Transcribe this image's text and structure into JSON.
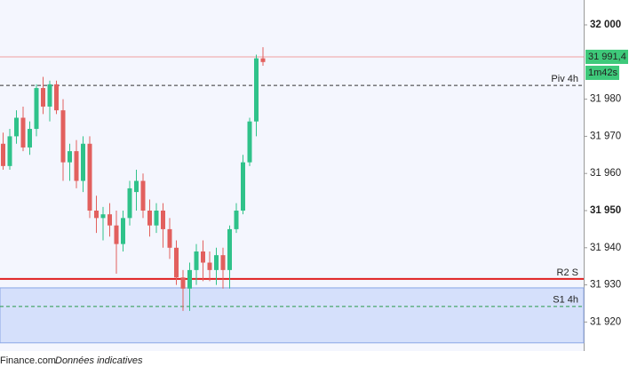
{
  "chart_data": {
    "type": "candlestick",
    "categories": [
      null,
      null,
      null,
      null,
      null,
      null,
      null,
      null,
      null,
      null,
      null,
      null,
      null,
      null,
      null,
      null,
      null,
      null,
      null,
      null,
      null,
      null,
      null,
      null,
      null,
      null,
      null,
      null,
      null,
      null,
      null,
      null,
      null,
      null,
      null,
      null,
      null,
      null,
      null,
      null
    ],
    "open": [
      31968,
      31962,
      31970,
      31975,
      31967,
      31972,
      31983,
      31978,
      31984,
      31977,
      31963,
      31966,
      31958,
      31968,
      31950,
      31948,
      31949,
      31946,
      31941,
      31948,
      31955,
      31958,
      31950,
      31946,
      31950,
      31945,
      31940,
      31932,
      31929,
      31934,
      31939,
      31936,
      31934,
      31938,
      31934,
      31945,
      31950,
      31963,
      31974,
      31991
    ],
    "high": [
      31971,
      31972,
      31977,
      31978,
      31974,
      31984,
      31986,
      31985,
      31985,
      31980,
      31968,
      31969,
      31970,
      31970,
      31954,
      31951,
      31952,
      31950,
      31950,
      31958,
      31961,
      31960,
      31953,
      31952,
      31952,
      31948,
      31942,
      31934,
      31936,
      31941,
      31942,
      31939,
      31940,
      31940,
      31946,
      31952,
      31965,
      31975,
      31992,
      31994
    ],
    "low": [
      31961,
      31961,
      31968,
      31966,
      31965,
      31970,
      31976,
      31974,
      31976,
      31958,
      31958,
      31956,
      31955,
      31948,
      31944,
      31942,
      31943,
      31933,
      31939,
      31946,
      31950,
      31948,
      31943,
      31944,
      31940,
      31937,
      31930,
      31923,
      31923,
      31930,
      31931,
      31931,
      31930,
      31929,
      31929,
      31944,
      31949,
      31962,
      31970,
      31989
    ],
    "close": [
      31962,
      31970,
      31975,
      31967,
      31972,
      31983,
      31978,
      31984,
      31977,
      31963,
      31966,
      31958,
      31968,
      31950,
      31948,
      31949,
      31946,
      31941,
      31948,
      31956,
      31958,
      31950,
      31946,
      31950,
      31945,
      31940,
      31932,
      31929,
      31934,
      31939,
      31936,
      31934,
      31938,
      31934,
      31945,
      31950,
      31963,
      31974,
      31991,
      31990
    ],
    "up_color": "#2fc28a",
    "down_color": "#e2605e",
    "ylim": [
      31912.2,
      32006.7
    ],
    "yticks": [
      {
        "value": 32000,
        "label": "32 000"
      },
      {
        "value": 31980,
        "label": "31 980"
      },
      {
        "value": 31970,
        "label": "31 970"
      },
      {
        "value": 31960,
        "label": "31 960"
      },
      {
        "value": 31950,
        "label": "31 950"
      },
      {
        "value": 31940,
        "label": "31 940"
      },
      {
        "value": 31930,
        "label": "31 930"
      },
      {
        "value": 31920,
        "label": "31 920"
      }
    ],
    "last_price": {
      "value": 31991.4,
      "label": "31 991,4"
    },
    "timer": "1m42s",
    "levels": [
      {
        "name": "Piv 4h",
        "value": 31983.7,
        "color": "#333333",
        "style": "dashed"
      },
      {
        "name": "R2 S",
        "value": 31931.6,
        "color": "#e02020",
        "style": "solid"
      },
      {
        "name": "S1 4h",
        "value": 31924.2,
        "color": "#2a9a4a",
        "style": "dashed"
      }
    ],
    "zone": [
      31914.4,
      31929.2
    ],
    "footer": [
      "Finance.com",
      "Données indicatives"
    ]
  }
}
